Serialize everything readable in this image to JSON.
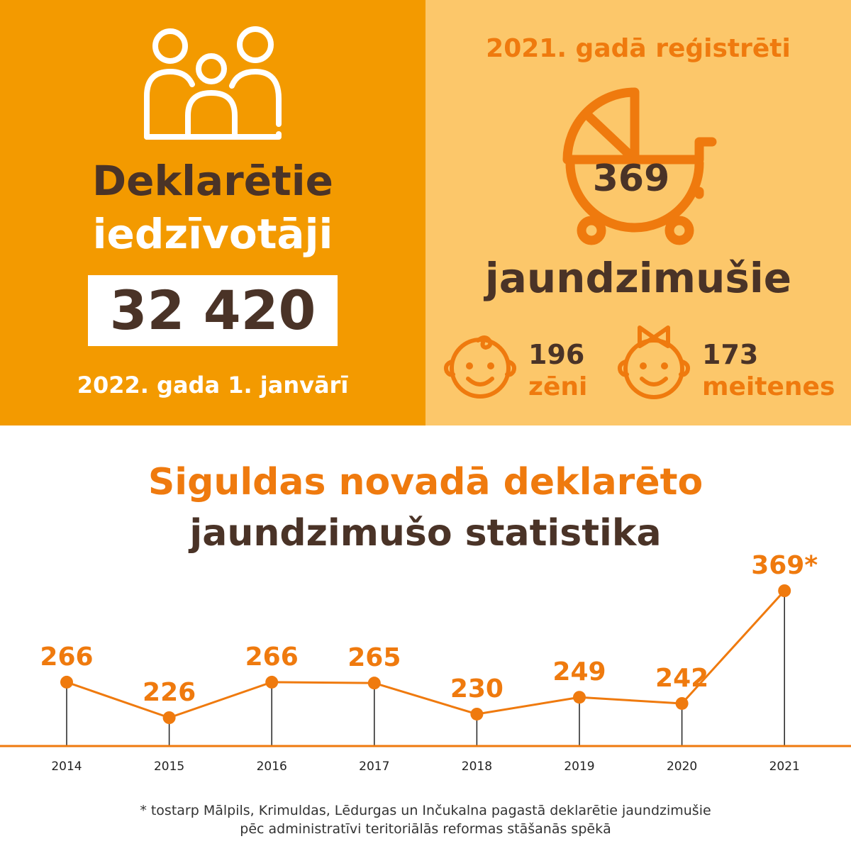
{
  "population": {
    "title_line1": "Deklarētie",
    "title_line2": "iedzīvotāji",
    "count": "32 420",
    "date": "2022. gada 1. janvārī",
    "icon": "people-group-icon"
  },
  "births": {
    "heading": "2021. gadā reģistrēti",
    "count": "369",
    "label": "jaundzimušie",
    "icon": "baby-stroller-icon",
    "boys": {
      "count": "196",
      "label": "zēni",
      "icon": "baby-boy-face-icon"
    },
    "girls": {
      "count": "173",
      "label": "meitenes",
      "icon": "baby-girl-face-icon"
    }
  },
  "stats_title": {
    "line1": "Siguldas novadā deklarēto",
    "line2": "jaundzimušo statistika"
  },
  "chart_data": {
    "type": "line",
    "title": "",
    "x": [
      "2014",
      "2015",
      "2016",
      "2017",
      "2018",
      "2019",
      "2020",
      "2021"
    ],
    "values": [
      266,
      226,
      266,
      265,
      230,
      249,
      242,
      369
    ],
    "labels": [
      "266",
      "226",
      "266",
      "265",
      "230",
      "249",
      "242",
      "369*"
    ],
    "xlabel": "",
    "ylabel": "",
    "grid": false,
    "legend": "none"
  },
  "footnote": {
    "line1": "* tostarp Mālpils, Krimuldas, Lēdurgas un Inčukalna pagastā deklarētie jaundzimušie",
    "line2": "pēc administratīvi teritoriālās reformas stāšanās spēkā"
  },
  "colors": {
    "orange_dark": "#f39a00",
    "orange_light": "#fcc76a",
    "accent": "#ef7a0e",
    "brown": "#4a3327"
  }
}
